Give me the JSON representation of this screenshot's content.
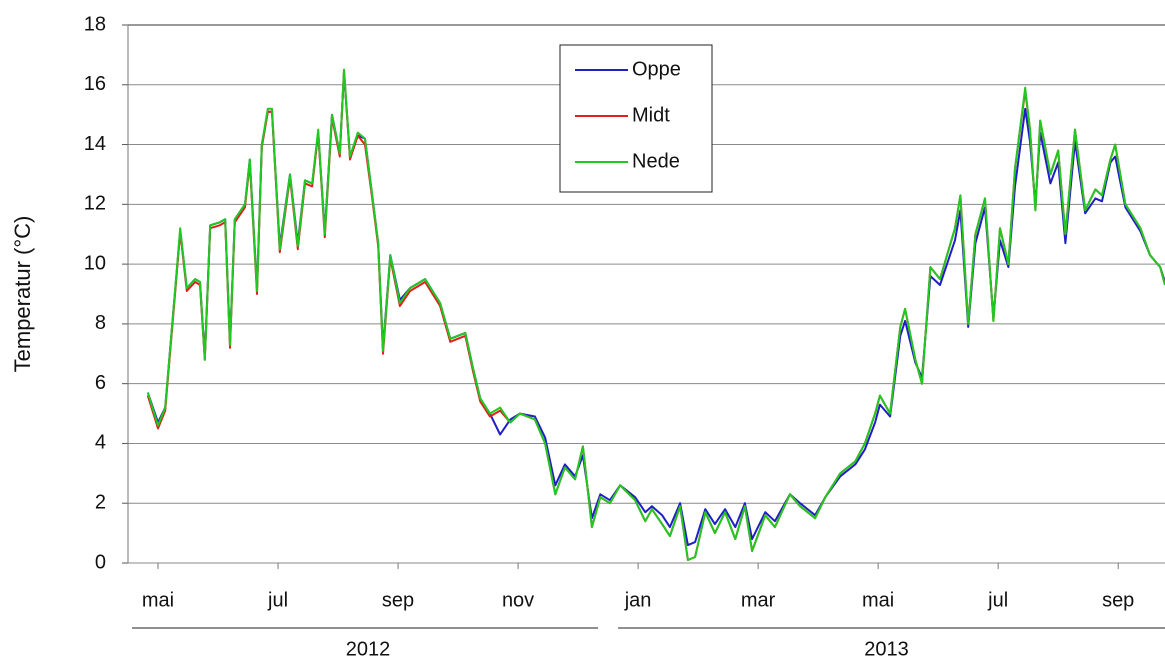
{
  "chart_data": {
    "type": "line",
    "y_label": "Temperatur (°C)",
    "ylim": [
      0,
      18
    ],
    "yticks": [
      0,
      2,
      4,
      6,
      8,
      10,
      12,
      14,
      16,
      18
    ],
    "xlim": [
      5,
      22.28
    ],
    "xticks": [
      {
        "value": 5.5,
        "label": "mai"
      },
      {
        "value": 7.5,
        "label": "jul"
      },
      {
        "value": 9.5,
        "label": "sep"
      },
      {
        "value": 11.5,
        "label": "nov"
      },
      {
        "value": 13.5,
        "label": "jan"
      },
      {
        "value": 15.5,
        "label": "mar"
      },
      {
        "value": 17.5,
        "label": "mai"
      },
      {
        "value": 19.5,
        "label": "jul"
      },
      {
        "value": 21.5,
        "label": "sep"
      }
    ],
    "xgroups": [
      {
        "label": "2012",
        "range": [
          5,
          13
        ]
      },
      {
        "label": "2013",
        "range": [
          13,
          22.28
        ]
      }
    ],
    "grid": true,
    "legend": "top-center",
    "x": [
      5.33,
      5.5,
      5.62,
      5.78,
      5.87,
      5.98,
      6.12,
      6.2,
      6.28,
      6.37,
      6.53,
      6.62,
      6.7,
      6.78,
      6.95,
      7.03,
      7.15,
      7.23,
      7.33,
      7.4,
      7.53,
      7.7,
      7.83,
      7.95,
      8.07,
      8.17,
      8.28,
      8.4,
      8.53,
      8.6,
      8.7,
      8.83,
      8.95,
      9.07,
      9.17,
      9.25,
      9.37,
      9.53,
      9.7,
      9.95,
      10.2,
      10.37,
      10.62,
      10.75,
      10.87,
      11.03,
      11.2,
      11.37,
      11.53,
      11.78,
      11.95,
      12.12,
      12.28,
      12.45,
      12.58,
      12.73,
      12.87,
      13.03,
      13.2,
      13.45,
      13.62,
      13.73,
      13.9,
      14.03,
      14.2,
      14.33,
      14.45,
      14.62,
      14.78,
      14.95,
      15.12,
      15.28,
      15.4,
      15.62,
      15.78,
      16.03,
      16.2,
      16.45,
      16.62,
      16.87,
      17.12,
      17.28,
      17.45,
      17.53,
      17.7,
      17.87,
      17.95,
      18.12,
      18.23,
      18.37,
      18.53,
      18.78,
      18.87,
      19.0,
      19.12,
      19.28,
      19.42,
      19.53,
      19.67,
      19.78,
      19.95,
      20.03,
      20.12,
      20.2,
      20.37,
      20.5,
      20.62,
      20.78,
      20.95,
      21.12,
      21.23,
      21.37,
      21.45,
      21.62,
      21.87,
      22.03,
      22.2,
      22.28
    ],
    "series": [
      {
        "name": "Oppe",
        "color": "#1f1fc8",
        "values": [
          5.7,
          4.7,
          5.2,
          9.0,
          11.1,
          9.2,
          9.5,
          9.4,
          6.9,
          11.3,
          11.4,
          11.5,
          7.4,
          11.5,
          12.0,
          13.5,
          9.2,
          14.0,
          15.1,
          15.1,
          10.6,
          13.0,
          10.7,
          12.8,
          12.7,
          14.4,
          11.1,
          15.0,
          13.7,
          16.4,
          13.6,
          14.3,
          14.2,
          12.3,
          10.7,
          7.2,
          10.3,
          8.8,
          9.2,
          9.5,
          8.7,
          7.5,
          7.7,
          6.5,
          5.5,
          5.0,
          4.3,
          4.8,
          5.0,
          4.9,
          4.2,
          2.6,
          3.3,
          2.9,
          3.6,
          1.5,
          2.3,
          2.1,
          2.6,
          2.2,
          1.7,
          1.9,
          1.6,
          1.2,
          2.0,
          0.6,
          0.7,
          1.8,
          1.3,
          1.8,
          1.2,
          2.0,
          0.8,
          1.7,
          1.4,
          2.3,
          2.0,
          1.6,
          2.2,
          2.9,
          3.3,
          3.8,
          4.7,
          5.3,
          4.9,
          7.6,
          8.1,
          6.7,
          6.2,
          9.6,
          9.3,
          10.8,
          11.8,
          7.9,
          10.7,
          11.9,
          8.2,
          10.8,
          9.9,
          12.6,
          15.2,
          14.1,
          12.0,
          14.4,
          12.7,
          13.4,
          10.7,
          14.1,
          11.7,
          12.2,
          12.1,
          13.4,
          13.6,
          11.9,
          11.1,
          10.3,
          9.9,
          9.4
        ]
      },
      {
        "name": "Midt",
        "color": "#e0201c",
        "values": [
          5.6,
          4.5,
          5.1,
          8.9,
          11.1,
          9.1,
          9.4,
          9.3,
          6.8,
          11.2,
          11.3,
          11.4,
          7.2,
          11.4,
          11.9,
          13.4,
          9.0,
          13.9,
          15.1,
          15.1,
          10.4,
          12.9,
          10.5,
          12.7,
          12.6,
          14.4,
          10.9,
          14.9,
          13.6,
          16.5,
          13.5,
          14.3,
          14.0,
          12.2,
          10.6,
          7.0,
          10.2,
          8.6,
          9.1,
          9.4,
          8.6,
          7.4,
          7.6,
          6.4,
          5.4,
          4.9,
          5.1,
          4.7,
          5.0,
          4.8,
          4.0,
          2.3,
          3.2,
          2.8,
          3.9,
          1.2,
          2.2,
          2.0,
          2.6,
          2.1,
          1.4,
          1.8,
          1.3,
          0.9,
          1.9,
          0.1,
          0.2,
          1.7,
          1.0,
          1.7,
          0.8,
          1.9,
          0.4,
          1.6,
          1.2,
          2.3,
          1.9,
          1.5,
          2.2,
          3.0,
          3.4,
          4.0,
          5.0,
          5.6,
          5.0,
          7.9,
          8.5,
          6.8,
          6.0,
          9.9,
          9.5,
          11.2,
          12.3,
          8.0,
          11.0,
          12.2,
          8.1,
          11.2,
          10.0,
          13.2,
          15.8,
          14.5,
          11.8,
          14.8,
          13.0,
          13.8,
          11.0,
          14.5,
          11.8,
          12.5,
          12.3,
          13.5,
          14.0,
          12.0,
          11.2,
          10.3,
          9.9,
          9.3
        ]
      },
      {
        "name": "Nede",
        "color": "#22c822",
        "values": [
          5.7,
          4.6,
          5.2,
          9.0,
          11.2,
          9.2,
          9.5,
          9.4,
          6.8,
          11.3,
          11.4,
          11.5,
          7.3,
          11.5,
          12.0,
          13.5,
          9.1,
          14.0,
          15.2,
          15.2,
          10.5,
          13.0,
          10.6,
          12.8,
          12.7,
          14.5,
          11.0,
          15.0,
          13.7,
          16.5,
          13.6,
          14.4,
          14.2,
          12.3,
          10.7,
          7.1,
          10.3,
          8.7,
          9.2,
          9.5,
          8.7,
          7.5,
          7.7,
          6.5,
          5.5,
          5.0,
          5.2,
          4.7,
          5.0,
          4.8,
          4.0,
          2.3,
          3.2,
          2.8,
          3.9,
          1.2,
          2.2,
          2.0,
          2.6,
          2.1,
          1.4,
          1.8,
          1.3,
          0.9,
          1.9,
          0.1,
          0.2,
          1.7,
          1.0,
          1.7,
          0.8,
          1.9,
          0.4,
          1.6,
          1.2,
          2.3,
          1.9,
          1.5,
          2.2,
          3.0,
          3.4,
          4.0,
          5.0,
          5.6,
          5.0,
          7.9,
          8.5,
          6.8,
          6.0,
          9.9,
          9.5,
          11.2,
          12.3,
          8.0,
          11.0,
          12.2,
          8.1,
          11.2,
          10.0,
          13.2,
          15.9,
          14.5,
          11.8,
          14.8,
          13.0,
          13.8,
          11.0,
          14.5,
          11.8,
          12.5,
          12.3,
          13.5,
          14.0,
          12.0,
          11.2,
          10.3,
          9.9,
          9.3
        ]
      }
    ]
  }
}
